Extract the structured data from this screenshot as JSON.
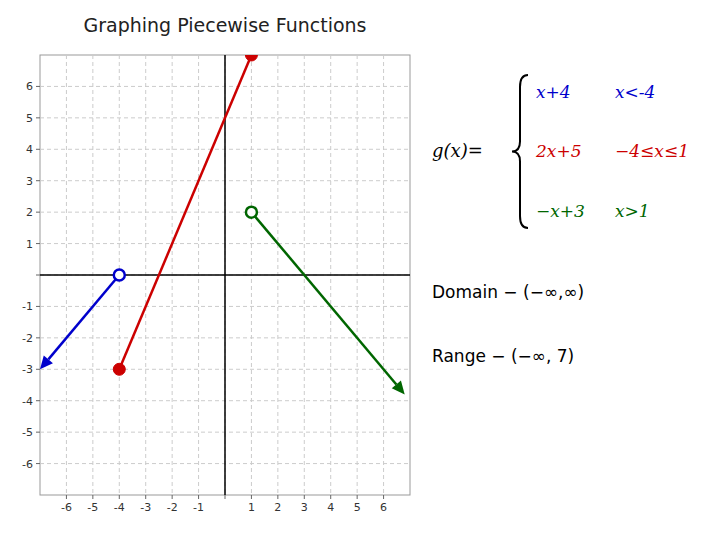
{
  "chart_data": {
    "type": "piecewise",
    "title": "Graphing Piecewise Functions",
    "xlim": [
      -7,
      7
    ],
    "ylim": [
      -7,
      7
    ],
    "xticks": [
      -6,
      -5,
      -4,
      -3,
      -2,
      -1,
      {
        "value": 0,
        "label": null
      },
      1,
      2,
      3,
      4,
      5,
      6
    ],
    "yticks": [
      -6,
      -5,
      -4,
      -3,
      -2,
      -1,
      {
        "value": 0,
        "label": null
      },
      1,
      2,
      3,
      4,
      5,
      6
    ],
    "grid": true,
    "series": [
      {
        "formula": "x+4",
        "condition": "x<-4",
        "color": "#0000cc",
        "marker": "open-circle",
        "line_style": "arrow",
        "x": [
          -4,
          -7
        ],
        "values": [
          0,
          -3
        ]
      },
      {
        "formula": "2x+5",
        "condition": "−4≤x≤1",
        "color": "#cc0000",
        "marker": "circle",
        "line_style": "solid",
        "x": [
          -4,
          1
        ],
        "values": [
          -3,
          7
        ]
      },
      {
        "formula": "−x+3",
        "condition": "x>1",
        "color": "#006600",
        "marker": "open-circle",
        "line_style": "arrow",
        "x": [
          1,
          6.8
        ],
        "values": [
          2,
          -3.8
        ]
      }
    ],
    "annotations": [
      "g(x)=",
      "Domain − (−∞,∞)",
      "Range − (−∞, 7)"
    ]
  }
}
